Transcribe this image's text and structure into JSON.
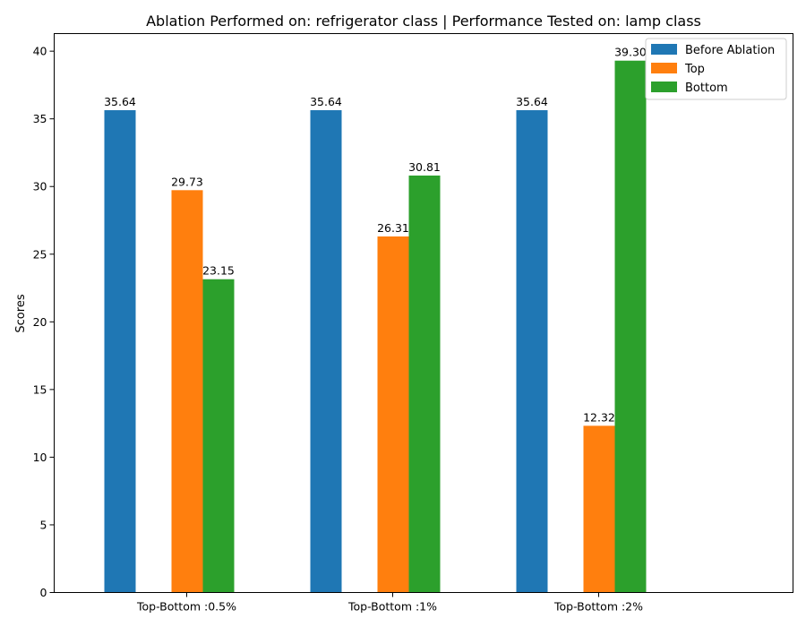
{
  "chart_data": {
    "type": "bar",
    "title": "Ablation Performed on: refrigerator class | Performance Tested on: lamp class",
    "xlabel": "",
    "ylabel": "Scores",
    "ylim": [
      0,
      41.3
    ],
    "yticks": [
      0,
      5,
      10,
      15,
      20,
      25,
      30,
      35,
      40
    ],
    "categories": [
      "Top-Bottom :0.5%",
      "Top-Bottom :1%",
      "Top-Bottom :2%"
    ],
    "series": [
      {
        "name": "Before Ablation",
        "color": "#1f77b4",
        "values": [
          35.64,
          35.64,
          35.64
        ],
        "labels": [
          "35.64",
          "35.64",
          "35.64"
        ]
      },
      {
        "name": "Top",
        "color": "#ff7f0e",
        "values": [
          29.73,
          26.31,
          12.32
        ],
        "labels": [
          "29.73",
          "26.31",
          "12.32"
        ]
      },
      {
        "name": "Bottom",
        "color": "#2ca02c",
        "values": [
          23.15,
          30.81,
          39.3
        ],
        "labels": [
          "23.15",
          "30.81",
          "39.30"
        ]
      }
    ],
    "legend": "top-right",
    "grid": false
  }
}
